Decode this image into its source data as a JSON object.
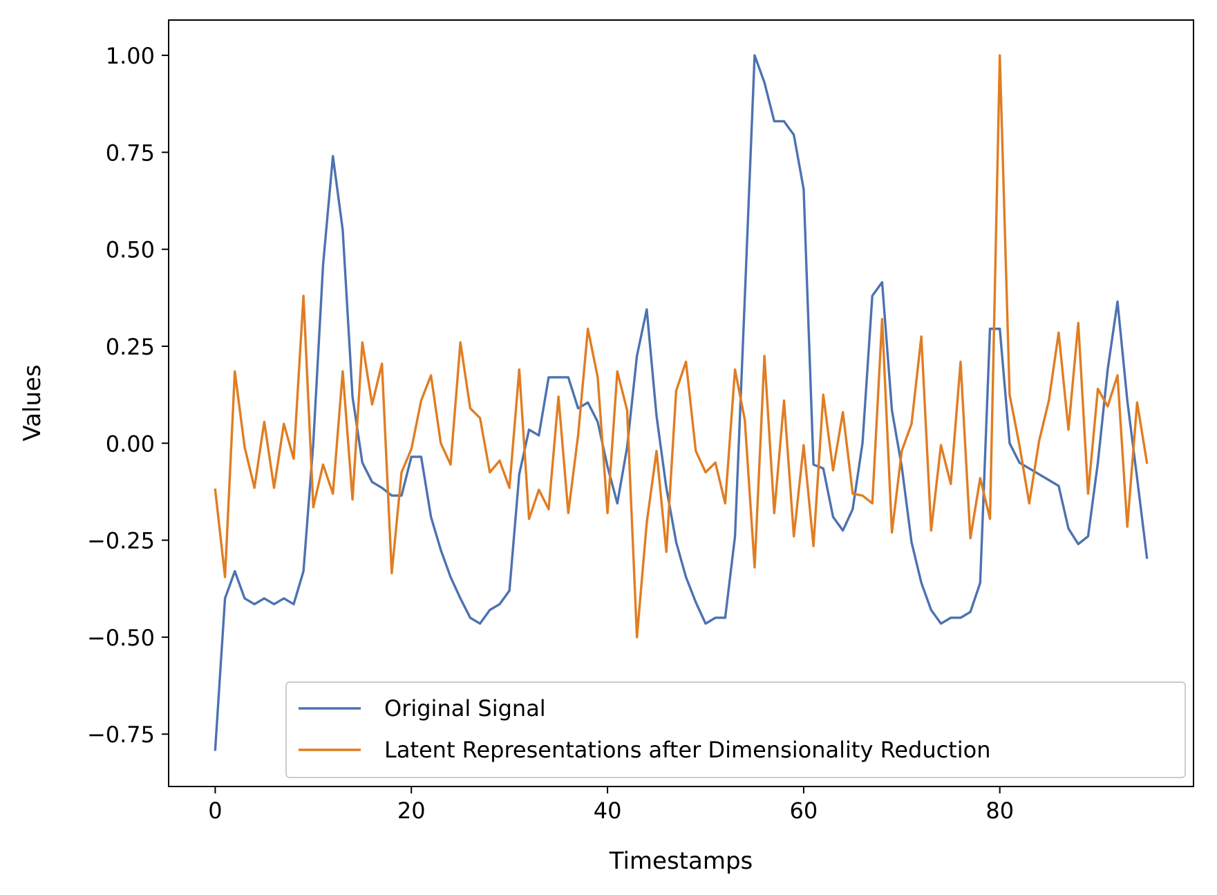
{
  "chart_data": {
    "type": "line",
    "title": "",
    "xlabel": "Timestamps",
    "ylabel": "Values",
    "xlim": [
      -4.75,
      99.75
    ],
    "ylim": [
      -0.885,
      1.091
    ],
    "xticks": [
      0,
      20,
      40,
      60,
      80
    ],
    "xtick_labels": [
      "0",
      "20",
      "40",
      "60",
      "80"
    ],
    "yticks": [
      -0.75,
      -0.5,
      -0.25,
      0.0,
      0.25,
      0.5,
      0.75,
      1.0
    ],
    "ytick_labels": [
      "−0.75",
      "−0.50",
      "−0.25",
      "0.00",
      "0.25",
      "0.50",
      "0.75",
      "1.00"
    ],
    "grid": false,
    "legend_position": "lower-right",
    "x": [
      0,
      1,
      2,
      3,
      4,
      5,
      6,
      7,
      8,
      9,
      10,
      11,
      12,
      13,
      14,
      15,
      16,
      17,
      18,
      19,
      20,
      21,
      22,
      23,
      24,
      25,
      26,
      27,
      28,
      29,
      30,
      31,
      32,
      33,
      34,
      35,
      36,
      37,
      38,
      39,
      40,
      41,
      42,
      43,
      44,
      45,
      46,
      47,
      48,
      49,
      50,
      51,
      52,
      53,
      54,
      55,
      56,
      57,
      58,
      59,
      60,
      61,
      62,
      63,
      64,
      65,
      66,
      67,
      68,
      69,
      70,
      71,
      72,
      73,
      74,
      75,
      76,
      77,
      78,
      79,
      80,
      81,
      82,
      83,
      84,
      85,
      86,
      87,
      88,
      89,
      90,
      91,
      92,
      93,
      94,
      95
    ],
    "series": [
      {
        "name": "Original Signal",
        "color": "#4c72b0",
        "values": [
          -0.79,
          -0.4,
          -0.33,
          -0.4,
          -0.415,
          -0.4,
          -0.415,
          -0.4,
          -0.415,
          -0.33,
          0.0,
          0.46,
          0.74,
          0.55,
          0.12,
          -0.05,
          -0.1,
          -0.115,
          -0.135,
          -0.135,
          -0.035,
          -0.035,
          -0.19,
          -0.275,
          -0.345,
          -0.4,
          -0.45,
          -0.465,
          -0.43,
          -0.415,
          -0.38,
          -0.08,
          0.035,
          0.02,
          0.17,
          0.17,
          0.17,
          0.09,
          0.105,
          0.055,
          -0.06,
          -0.155,
          -0.01,
          0.225,
          0.345,
          0.07,
          -0.115,
          -0.255,
          -0.345,
          -0.41,
          -0.465,
          -0.45,
          -0.45,
          -0.24,
          0.375,
          1.0,
          0.93,
          0.83,
          0.83,
          0.795,
          0.655,
          -0.055,
          -0.065,
          -0.19,
          -0.225,
          -0.17,
          0.0,
          0.38,
          0.415,
          0.085,
          -0.06,
          -0.255,
          -0.36,
          -0.43,
          -0.465,
          -0.45,
          -0.45,
          -0.435,
          -0.36,
          0.295,
          0.295,
          0.0,
          -0.05,
          -0.065,
          -0.08,
          -0.095,
          -0.11,
          -0.22,
          -0.26,
          -0.24,
          -0.05,
          0.19,
          0.365,
          0.11,
          -0.09,
          -0.295
        ]
      },
      {
        "name": "Latent Representations after Dimensionality Reduction",
        "color": "#e07d22",
        "values": [
          -0.12,
          -0.345,
          0.185,
          -0.01,
          -0.115,
          0.055,
          -0.115,
          0.05,
          -0.04,
          0.38,
          -0.165,
          -0.055,
          -0.13,
          0.185,
          -0.145,
          0.26,
          0.1,
          0.205,
          -0.335,
          -0.075,
          -0.015,
          0.11,
          0.175,
          0.0,
          -0.055,
          0.26,
          0.09,
          0.065,
          -0.075,
          -0.045,
          -0.115,
          0.19,
          -0.195,
          -0.12,
          -0.17,
          0.12,
          -0.18,
          0.02,
          0.295,
          0.17,
          -0.18,
          0.185,
          0.085,
          -0.5,
          -0.205,
          -0.02,
          -0.28,
          0.135,
          0.21,
          -0.02,
          -0.075,
          -0.05,
          -0.155,
          0.19,
          0.06,
          -0.32,
          0.225,
          -0.18,
          0.11,
          -0.24,
          -0.005,
          -0.265,
          0.125,
          -0.07,
          0.08,
          -0.13,
          -0.135,
          -0.155,
          0.32,
          -0.23,
          -0.02,
          0.05,
          0.275,
          -0.225,
          -0.005,
          -0.105,
          0.21,
          -0.245,
          -0.09,
          -0.195,
          1.0,
          0.125,
          -0.005,
          -0.155,
          0.005,
          0.11,
          0.285,
          0.035,
          0.31,
          -0.13,
          0.14,
          0.095,
          0.175,
          -0.215,
          0.105,
          -0.05
        ]
      }
    ]
  }
}
